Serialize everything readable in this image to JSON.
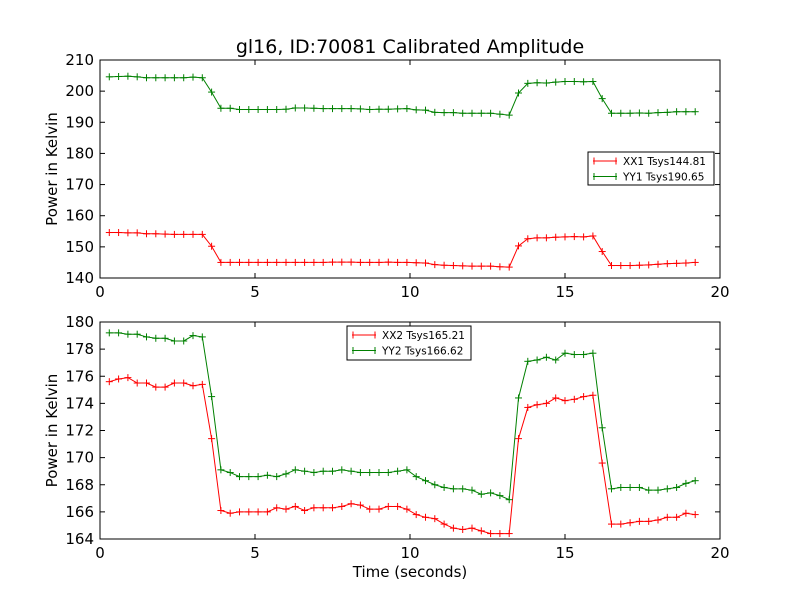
{
  "chart_data": [
    {
      "type": "line",
      "title": "gl16, ID:70081 Calibrated Amplitude",
      "xlabel": "",
      "ylabel": "Power in Kelvin",
      "xlim": [
        0,
        20
      ],
      "ylim": [
        140,
        210
      ],
      "xticks": [
        0,
        5,
        10,
        15,
        20
      ],
      "yticks": [
        140,
        150,
        160,
        170,
        180,
        190,
        200,
        210
      ],
      "legend_position": "center-right",
      "series": [
        {
          "name": "XX1 Tsys144.81",
          "color": "#ff0000",
          "x": [
            0.3,
            0.6,
            0.9,
            1.2,
            1.5,
            1.8,
            2.1,
            2.4,
            2.7,
            3.0,
            3.3,
            3.6,
            3.9,
            4.2,
            4.5,
            4.8,
            5.1,
            5.4,
            5.7,
            6.0,
            6.3,
            6.6,
            6.9,
            7.2,
            7.5,
            7.8,
            8.1,
            8.4,
            8.7,
            9.0,
            9.3,
            9.6,
            9.9,
            10.2,
            10.5,
            10.8,
            11.1,
            11.4,
            11.7,
            12.0,
            12.3,
            12.6,
            12.9,
            13.2,
            13.5,
            13.8,
            14.1,
            14.4,
            14.7,
            15.0,
            15.3,
            15.6,
            15.9,
            16.2,
            16.5,
            16.8,
            17.1,
            17.4,
            17.7,
            18.0,
            18.3,
            18.6,
            18.9,
            19.2
          ],
          "values": [
            154.6,
            154.6,
            154.5,
            154.5,
            154.2,
            154.2,
            154.1,
            154.0,
            154.0,
            154.0,
            154.0,
            150.2,
            145.0,
            145.0,
            145.0,
            145.0,
            145.0,
            145.0,
            145.0,
            145.0,
            145.0,
            145.0,
            145.0,
            145.0,
            145.1,
            145.1,
            145.1,
            145.0,
            145.0,
            145.0,
            145.1,
            145.0,
            145.0,
            144.9,
            144.8,
            144.3,
            144.1,
            144.0,
            143.9,
            143.8,
            143.8,
            143.8,
            143.6,
            143.5,
            150.3,
            152.6,
            152.9,
            152.9,
            153.1,
            153.2,
            153.3,
            153.2,
            153.5,
            148.5,
            144.0,
            144.0,
            144.0,
            144.1,
            144.2,
            144.4,
            144.6,
            144.7,
            144.8,
            145.0
          ]
        },
        {
          "name": "YY1 Tsys190.65",
          "color": "#008000",
          "x": [
            0.3,
            0.6,
            0.9,
            1.2,
            1.5,
            1.8,
            2.1,
            2.4,
            2.7,
            3.0,
            3.3,
            3.6,
            3.9,
            4.2,
            4.5,
            4.8,
            5.1,
            5.4,
            5.7,
            6.0,
            6.3,
            6.6,
            6.9,
            7.2,
            7.5,
            7.8,
            8.1,
            8.4,
            8.7,
            9.0,
            9.3,
            9.6,
            9.9,
            10.2,
            10.5,
            10.8,
            11.1,
            11.4,
            11.7,
            12.0,
            12.3,
            12.6,
            12.9,
            13.2,
            13.5,
            13.8,
            14.1,
            14.4,
            14.7,
            15.0,
            15.3,
            15.6,
            15.9,
            16.2,
            16.5,
            16.8,
            17.1,
            17.4,
            17.7,
            18.0,
            18.3,
            18.6,
            18.9,
            19.2
          ],
          "values": [
            204.6,
            204.7,
            204.8,
            204.6,
            204.3,
            204.3,
            204.3,
            204.3,
            204.3,
            204.5,
            204.3,
            199.7,
            194.5,
            194.5,
            194.1,
            194.1,
            194.1,
            194.1,
            194.1,
            194.2,
            194.6,
            194.6,
            194.5,
            194.4,
            194.4,
            194.4,
            194.4,
            194.3,
            194.1,
            194.2,
            194.2,
            194.3,
            194.4,
            194.0,
            193.9,
            193.2,
            193.1,
            193.1,
            192.9,
            192.9,
            192.9,
            192.9,
            192.6,
            192.3,
            199.4,
            202.5,
            202.7,
            202.6,
            202.9,
            203.1,
            203.1,
            203.0,
            203.1,
            197.6,
            192.9,
            192.9,
            192.9,
            193.0,
            192.9,
            193.1,
            193.2,
            193.4,
            193.4,
            193.4
          ]
        }
      ]
    },
    {
      "type": "line",
      "title": "",
      "xlabel": "Time (seconds)",
      "ylabel": "Power in Kelvin",
      "xlim": [
        0,
        20
      ],
      "ylim": [
        164,
        180
      ],
      "xticks": [
        0,
        5,
        10,
        15,
        20
      ],
      "yticks": [
        164,
        166,
        168,
        170,
        172,
        174,
        176,
        178,
        180
      ],
      "legend_position": "upper-center",
      "series": [
        {
          "name": "XX2 Tsys165.21",
          "color": "#ff0000",
          "x": [
            0.3,
            0.6,
            0.9,
            1.2,
            1.5,
            1.8,
            2.1,
            2.4,
            2.7,
            3.0,
            3.3,
            3.6,
            3.9,
            4.2,
            4.5,
            4.8,
            5.1,
            5.4,
            5.7,
            6.0,
            6.3,
            6.6,
            6.9,
            7.2,
            7.5,
            7.8,
            8.1,
            8.4,
            8.7,
            9.0,
            9.3,
            9.6,
            9.9,
            10.2,
            10.5,
            10.8,
            11.1,
            11.4,
            11.7,
            12.0,
            12.3,
            12.6,
            12.9,
            13.2,
            13.5,
            13.8,
            14.1,
            14.4,
            14.7,
            15.0,
            15.3,
            15.6,
            15.9,
            16.2,
            16.5,
            16.8,
            17.1,
            17.4,
            17.7,
            18.0,
            18.3,
            18.6,
            18.9,
            19.2
          ],
          "values": [
            175.6,
            175.8,
            175.9,
            175.5,
            175.5,
            175.2,
            175.2,
            175.5,
            175.5,
            175.3,
            175.4,
            171.4,
            166.1,
            165.9,
            166.0,
            166.0,
            166.0,
            166.0,
            166.3,
            166.2,
            166.4,
            166.1,
            166.3,
            166.3,
            166.3,
            166.4,
            166.6,
            166.5,
            166.2,
            166.2,
            166.4,
            166.4,
            166.2,
            165.8,
            165.6,
            165.5,
            165.1,
            164.8,
            164.7,
            164.8,
            164.6,
            164.4,
            164.4,
            164.4,
            171.4,
            173.7,
            173.9,
            174.0,
            174.4,
            174.2,
            174.3,
            174.5,
            174.6,
            169.6,
            165.1,
            165.1,
            165.2,
            165.3,
            165.3,
            165.4,
            165.6,
            165.6,
            165.9,
            165.8
          ]
        },
        {
          "name": "YY2 Tsys166.62",
          "color": "#008000",
          "x": [
            0.3,
            0.6,
            0.9,
            1.2,
            1.5,
            1.8,
            2.1,
            2.4,
            2.7,
            3.0,
            3.3,
            3.6,
            3.9,
            4.2,
            4.5,
            4.8,
            5.1,
            5.4,
            5.7,
            6.0,
            6.3,
            6.6,
            6.9,
            7.2,
            7.5,
            7.8,
            8.1,
            8.4,
            8.7,
            9.0,
            9.3,
            9.6,
            9.9,
            10.2,
            10.5,
            10.8,
            11.1,
            11.4,
            11.7,
            12.0,
            12.3,
            12.6,
            12.9,
            13.2,
            13.5,
            13.8,
            14.1,
            14.4,
            14.7,
            15.0,
            15.3,
            15.6,
            15.9,
            16.2,
            16.5,
            16.8,
            17.1,
            17.4,
            17.7,
            18.0,
            18.3,
            18.6,
            18.9,
            19.2
          ],
          "values": [
            179.2,
            179.2,
            179.1,
            179.1,
            178.9,
            178.8,
            178.8,
            178.6,
            178.6,
            179.0,
            178.9,
            174.5,
            169.1,
            168.9,
            168.6,
            168.6,
            168.6,
            168.7,
            168.6,
            168.8,
            169.1,
            169.0,
            168.9,
            169.0,
            169.0,
            169.1,
            169.0,
            168.9,
            168.9,
            168.9,
            168.9,
            169.0,
            169.1,
            168.6,
            168.3,
            168.0,
            167.8,
            167.7,
            167.7,
            167.6,
            167.3,
            167.4,
            167.2,
            166.9,
            174.4,
            177.1,
            177.2,
            177.4,
            177.2,
            177.7,
            177.6,
            177.6,
            177.7,
            172.2,
            167.7,
            167.8,
            167.8,
            167.8,
            167.6,
            167.6,
            167.7,
            167.8,
            168.1,
            168.3
          ]
        }
      ]
    }
  ]
}
